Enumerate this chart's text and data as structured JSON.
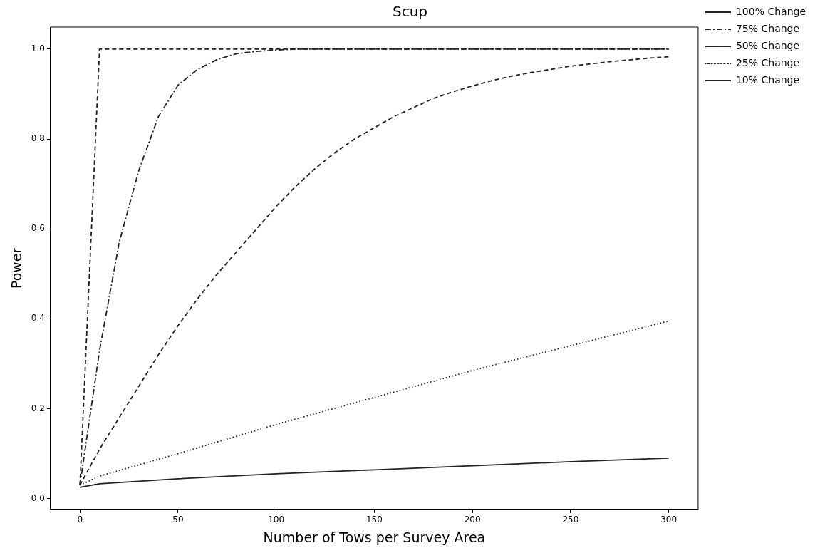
{
  "chart_data": {
    "type": "line",
    "title": "Scup",
    "xlabel": "Number of Tows per Survey Area",
    "ylabel": "Power",
    "xlim": [
      -15,
      315
    ],
    "xticks": [
      0,
      50,
      100,
      150,
      200,
      250,
      300
    ],
    "ylim": [
      -0.024,
      1.049
    ],
    "yticks": [
      {
        "value": 0,
        "label": "0.0"
      },
      0.2,
      0.4,
      0.6,
      0.8,
      {
        "value": 1,
        "label": "1.0"
      }
    ],
    "grid": false,
    "legend": "right",
    "marker": "none",
    "series": [
      {
        "name": "100% Change",
        "color": "#222222",
        "line_style": "dashed",
        "x": [
          0,
          10,
          20,
          50,
          100,
          150,
          200,
          250,
          300
        ],
        "values": [
          0.03,
          1.0,
          1.0,
          1.0,
          1.0,
          1.0,
          1.0,
          1.0,
          1.0
        ]
      },
      {
        "name": "75% Change",
        "color": "#222222",
        "line_style": "dashdot",
        "x": [
          0,
          10,
          20,
          30,
          40,
          50,
          60,
          70,
          80,
          90,
          100,
          110,
          150,
          200,
          250,
          300
        ],
        "values": [
          0.03,
          0.33,
          0.57,
          0.73,
          0.85,
          0.92,
          0.955,
          0.977,
          0.99,
          0.995,
          0.998,
          1.0,
          1.0,
          1.0,
          1.0,
          1.0
        ]
      },
      {
        "name": "50% Change",
        "color": "#222222",
        "line_style": "dashed",
        "x": [
          0,
          10,
          20,
          30,
          40,
          50,
          60,
          70,
          80,
          90,
          100,
          110,
          120,
          130,
          140,
          150,
          160,
          170,
          180,
          190,
          200,
          210,
          220,
          230,
          240,
          250,
          260,
          270,
          280,
          290,
          300
        ],
        "values": [
          0.03,
          0.11,
          0.18,
          0.25,
          0.32,
          0.385,
          0.445,
          0.5,
          0.55,
          0.6,
          0.65,
          0.695,
          0.735,
          0.77,
          0.8,
          0.825,
          0.85,
          0.87,
          0.89,
          0.905,
          0.918,
          0.93,
          0.94,
          0.948,
          0.955,
          0.962,
          0.967,
          0.972,
          0.976,
          0.98,
          0.983
        ]
      },
      {
        "name": "25% Change",
        "color": "#222222",
        "line_style": "dotted",
        "x": [
          0,
          10,
          50,
          100,
          150,
          200,
          250,
          300
        ],
        "values": [
          0.03,
          0.05,
          0.1,
          0.165,
          0.225,
          0.285,
          0.34,
          0.395
        ]
      },
      {
        "name": "10% Change",
        "color": "#222222",
        "line_style": "solid",
        "x": [
          0,
          10,
          50,
          100,
          150,
          200,
          250,
          300
        ],
        "values": [
          0.025,
          0.033,
          0.044,
          0.055,
          0.064,
          0.073,
          0.082,
          0.09
        ]
      }
    ]
  }
}
